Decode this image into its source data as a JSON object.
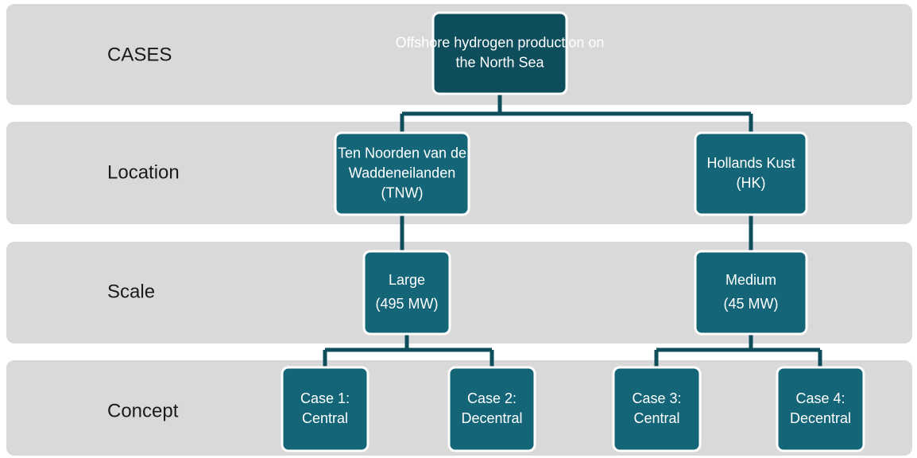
{
  "rows": [
    {
      "label": "CASES"
    },
    {
      "label": "Location"
    },
    {
      "label": "Scale"
    },
    {
      "label": "Concept"
    }
  ],
  "nodes": [
    {
      "lines": [
        "Offshore hydrogen production on",
        "the North Sea"
      ]
    },
    {
      "lines": [
        "Ten Noorden van de",
        "Waddeneilanden",
        "(TNW)"
      ]
    },
    {
      "lines": [
        "Hollands Kust",
        "(HK)"
      ]
    },
    {
      "lines": [
        "Large",
        "(495 MW)"
      ]
    },
    {
      "lines": [
        "Medium",
        "(45 MW)"
      ]
    },
    {
      "lines": [
        "Case  1:",
        "Central"
      ]
    },
    {
      "lines": [
        "Case 2:",
        "Decentral"
      ]
    },
    {
      "lines": [
        "Case 3:",
        "Central"
      ]
    },
    {
      "lines": [
        "Case 4:",
        "Decentral"
      ]
    }
  ]
}
